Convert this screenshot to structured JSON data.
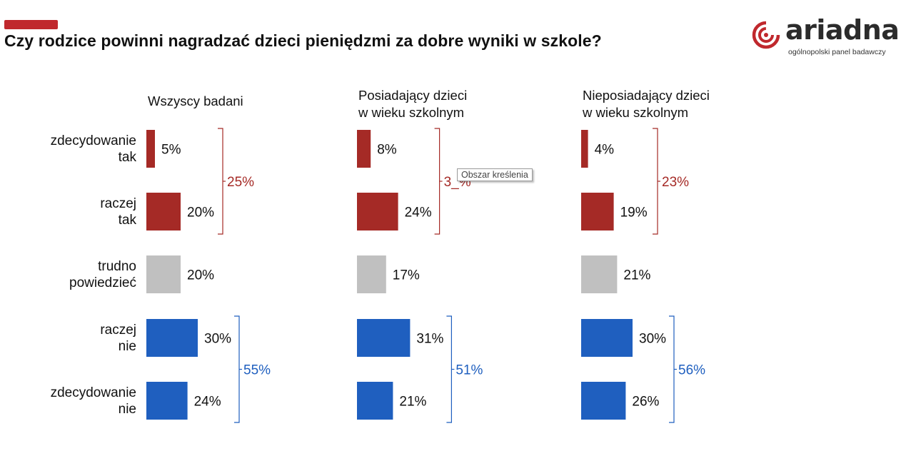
{
  "title": "Czy rodzice powinni nagradzać dzieci pieniędzmi za dobre wyniki w szkole?",
  "logo": {
    "word": "ariadna",
    "tagline": "ogólnopolski panel badawczy",
    "icon": "ariadna-spiral-icon"
  },
  "tooltip": "Obszar kreślenia",
  "colors": {
    "accent": "#c0282d",
    "tak": "#a52a26",
    "neutral": "#c0c0c0",
    "nie": "#1f5fbf",
    "tak_text": "#a52a26",
    "nie_text": "#1f5fbf"
  },
  "chart_data": {
    "type": "bar",
    "orientation": "horizontal",
    "categories": [
      [
        "zdecydowanie",
        "tak"
      ],
      [
        "raczej",
        "tak"
      ],
      [
        "trudno",
        "powiedzieć"
      ],
      [
        "raczej",
        "nie"
      ],
      [
        "zdecydowanie",
        "nie"
      ]
    ],
    "panels": [
      {
        "name": [
          "Wszyscy badani"
        ],
        "values": [
          5,
          20,
          20,
          30,
          24
        ],
        "labels": [
          "5%",
          "20%",
          "20%",
          "30%",
          "24%"
        ],
        "sum_tak": "25%",
        "sum_nie": "55%"
      },
      {
        "name": [
          "Posiadający dzieci",
          "w wieku szkolnym"
        ],
        "values": [
          8,
          24,
          17,
          31,
          21
        ],
        "labels": [
          "8%",
          "24%",
          "17%",
          "31%",
          "21%"
        ],
        "sum_tak": "3_%",
        "sum_nie": "51%"
      },
      {
        "name": [
          "Nieposiadający dzieci",
          "w wieku szkolnym"
        ],
        "values": [
          4,
          19,
          21,
          30,
          26
        ],
        "labels": [
          "4%",
          "19%",
          "21%",
          "30%",
          "26%"
        ],
        "sum_tak": "23%",
        "sum_nie": "56%"
      }
    ],
    "unit": "%"
  }
}
